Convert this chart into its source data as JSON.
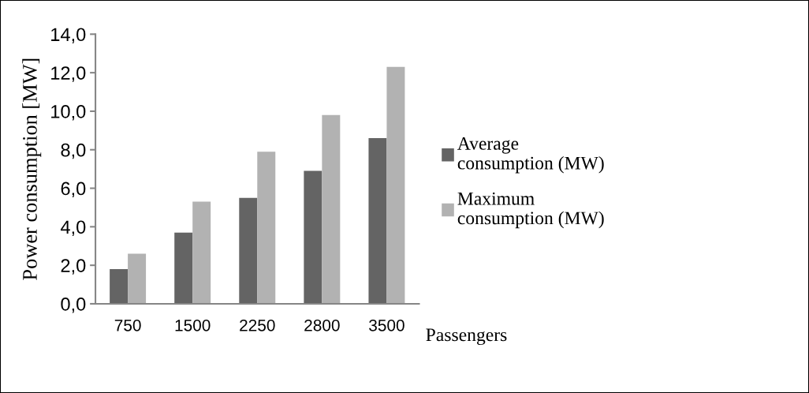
{
  "chart_data": {
    "type": "bar",
    "ylabel": "Power consumption [MW]",
    "xlabel": "Passengers",
    "categories": [
      "750",
      "1500",
      "2250",
      "2800",
      "3500"
    ],
    "series": [
      {
        "name": "Average consumption (MW)",
        "color": "#646464",
        "values": [
          1.8,
          3.7,
          5.5,
          6.9,
          8.6
        ]
      },
      {
        "name": "Maximum consumption (MW)",
        "color": "#b2b2b2",
        "values": [
          2.6,
          5.3,
          7.9,
          9.8,
          12.3
        ]
      }
    ],
    "ylim": [
      0,
      14
    ],
    "yticks": [
      {
        "value": 0,
        "label": "0,0"
      },
      {
        "value": 2,
        "label": "2,0"
      },
      {
        "value": 4,
        "label": "4,0"
      },
      {
        "value": 6,
        "label": "6,0"
      },
      {
        "value": 8,
        "label": "8,0"
      },
      {
        "value": 10,
        "label": "10,0"
      },
      {
        "value": 12,
        "label": "12,0"
      },
      {
        "value": 14,
        "label": "14,0"
      }
    ],
    "grid": false,
    "legend": "right"
  }
}
